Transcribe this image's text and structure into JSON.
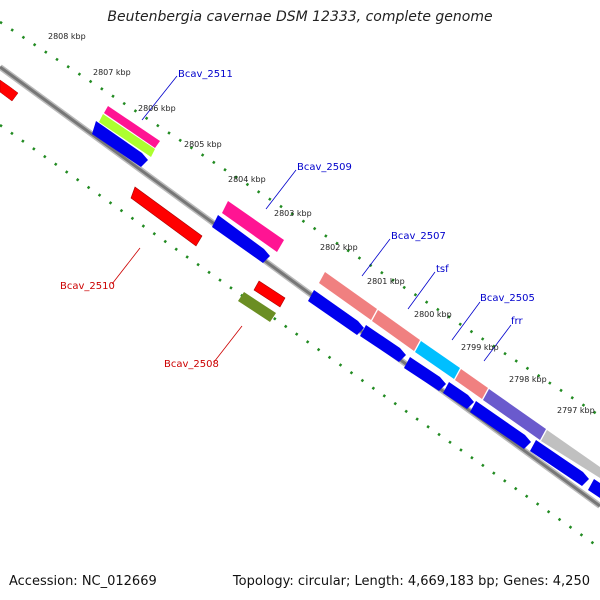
{
  "title": "Beutenbergia cavernae DSM 12333, complete genome",
  "footer": {
    "accession": "Accession: NC_012669",
    "topology": "Topology: circular; Length: 4,669,183 bp; Genes: 4,250"
  },
  "colors": {
    "backbone": "#888888",
    "ticks": "#228b22",
    "label_top": "#0000cc",
    "label_bottom": "#cc0000",
    "cds_forward": "#0000ee",
    "reverse_gene": "#ff0000"
  },
  "kbp_labels": [
    "2808 kbp",
    "2807 kbp",
    "2806 kbp",
    "2805 kbp",
    "2804 kbp",
    "2803 kbp",
    "2802 kbp",
    "2801 kbp",
    "2800 kbp",
    "2799 kbp",
    "2798 kbp",
    "2797 kbp"
  ],
  "gene_labels": [
    {
      "text": "Bcav_2511",
      "side": "top"
    },
    {
      "text": "Bcav_2509",
      "side": "top"
    },
    {
      "text": "Bcav_2507",
      "side": "top"
    },
    {
      "text": "tsf",
      "side": "top"
    },
    {
      "text": "Bcav_2505",
      "side": "top"
    },
    {
      "text": "frr",
      "side": "top"
    },
    {
      "text": "Bcav_2510",
      "side": "bottom"
    },
    {
      "text": "Bcav_2508",
      "side": "bottom"
    }
  ]
}
